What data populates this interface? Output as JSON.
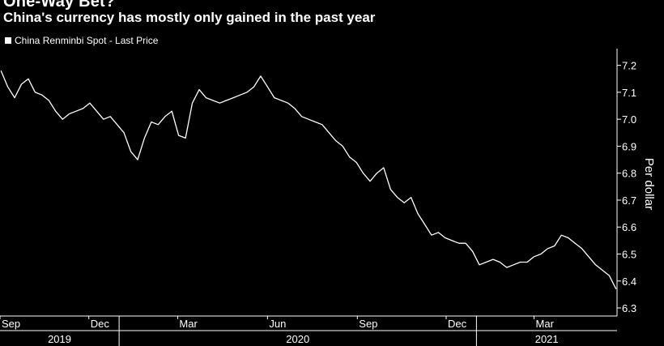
{
  "header": {
    "title": "One-Way Bet?",
    "subtitle": "China's currency has mostly only gained in the past year",
    "legend_label": "China Renminbi Spot - Last Price"
  },
  "colors": {
    "background": "#000000",
    "series": "#ffffff",
    "axis": "#ffffff"
  },
  "chart_data": {
    "type": "line",
    "title": "One-Way Bet?",
    "subtitle": "China's currency has mostly only gained in the past year",
    "ylabel": "Per dollar",
    "ylim": [
      6.27,
      7.25
    ],
    "y_ticks": [
      7.2,
      7.1,
      7.0,
      6.9,
      6.8,
      6.7,
      6.6,
      6.5,
      6.4,
      6.3
    ],
    "x_range": [
      "2019-09-01",
      "2021-05-25"
    ],
    "month_ticks": [
      {
        "date": "2019-09-01",
        "label": "Sep"
      },
      {
        "date": "2019-12-01",
        "label": "Dec"
      },
      {
        "date": "2020-03-01",
        "label": "Mar"
      },
      {
        "date": "2020-06-01",
        "label": "Jun"
      },
      {
        "date": "2020-09-01",
        "label": "Sep"
      },
      {
        "date": "2020-12-01",
        "label": "Dec"
      },
      {
        "date": "2021-03-01",
        "label": "Mar"
      }
    ],
    "years": [
      {
        "label": "2019",
        "start": "2019-09-01",
        "end": "2020-01-01"
      },
      {
        "label": "2020",
        "start": "2020-01-01",
        "end": "2021-01-01"
      },
      {
        "label": "2021",
        "start": "2021-01-01",
        "end": "2021-05-25"
      }
    ],
    "grid": false,
    "legend": "top-left",
    "series": [
      {
        "name": "China Renminbi Spot - Last Price",
        "points": [
          [
            "2019-09-02",
            7.18
          ],
          [
            "2019-09-09",
            7.12
          ],
          [
            "2019-09-16",
            7.08
          ],
          [
            "2019-09-23",
            7.13
          ],
          [
            "2019-09-30",
            7.15
          ],
          [
            "2019-10-07",
            7.1
          ],
          [
            "2019-10-14",
            7.09
          ],
          [
            "2019-10-21",
            7.07
          ],
          [
            "2019-10-28",
            7.03
          ],
          [
            "2019-11-04",
            7.0
          ],
          [
            "2019-11-11",
            7.02
          ],
          [
            "2019-11-18",
            7.03
          ],
          [
            "2019-11-25",
            7.04
          ],
          [
            "2019-12-02",
            7.06
          ],
          [
            "2019-12-09",
            7.03
          ],
          [
            "2019-12-16",
            7.0
          ],
          [
            "2019-12-23",
            7.01
          ],
          [
            "2019-12-30",
            6.98
          ],
          [
            "2020-01-06",
            6.95
          ],
          [
            "2020-01-13",
            6.88
          ],
          [
            "2020-01-20",
            6.85
          ],
          [
            "2020-01-27",
            6.93
          ],
          [
            "2020-02-03",
            6.99
          ],
          [
            "2020-02-10",
            6.98
          ],
          [
            "2020-02-17",
            7.01
          ],
          [
            "2020-02-24",
            7.03
          ],
          [
            "2020-03-02",
            6.94
          ],
          [
            "2020-03-09",
            6.93
          ],
          [
            "2020-03-16",
            7.06
          ],
          [
            "2020-03-23",
            7.11
          ],
          [
            "2020-03-30",
            7.08
          ],
          [
            "2020-04-06",
            7.07
          ],
          [
            "2020-04-13",
            7.06
          ],
          [
            "2020-04-20",
            7.07
          ],
          [
            "2020-04-27",
            7.08
          ],
          [
            "2020-05-04",
            7.09
          ],
          [
            "2020-05-11",
            7.1
          ],
          [
            "2020-05-18",
            7.12
          ],
          [
            "2020-05-25",
            7.16
          ],
          [
            "2020-06-01",
            7.12
          ],
          [
            "2020-06-08",
            7.08
          ],
          [
            "2020-06-15",
            7.07
          ],
          [
            "2020-06-22",
            7.06
          ],
          [
            "2020-06-29",
            7.04
          ],
          [
            "2020-07-06",
            7.01
          ],
          [
            "2020-07-13",
            7.0
          ],
          [
            "2020-07-20",
            6.99
          ],
          [
            "2020-07-27",
            6.98
          ],
          [
            "2020-08-03",
            6.95
          ],
          [
            "2020-08-10",
            6.92
          ],
          [
            "2020-08-17",
            6.9
          ],
          [
            "2020-08-24",
            6.86
          ],
          [
            "2020-08-31",
            6.84
          ],
          [
            "2020-09-07",
            6.8
          ],
          [
            "2020-09-14",
            6.77
          ],
          [
            "2020-09-21",
            6.8
          ],
          [
            "2020-09-28",
            6.82
          ],
          [
            "2020-10-05",
            6.74
          ],
          [
            "2020-10-12",
            6.71
          ],
          [
            "2020-10-19",
            6.69
          ],
          [
            "2020-10-26",
            6.71
          ],
          [
            "2020-11-02",
            6.65
          ],
          [
            "2020-11-09",
            6.61
          ],
          [
            "2020-11-16",
            6.57
          ],
          [
            "2020-11-23",
            6.58
          ],
          [
            "2020-11-30",
            6.56
          ],
          [
            "2020-12-07",
            6.55
          ],
          [
            "2020-12-14",
            6.54
          ],
          [
            "2020-12-21",
            6.54
          ],
          [
            "2020-12-28",
            6.51
          ],
          [
            "2021-01-04",
            6.46
          ],
          [
            "2021-01-11",
            6.47
          ],
          [
            "2021-01-18",
            6.48
          ],
          [
            "2021-01-25",
            6.47
          ],
          [
            "2021-02-01",
            6.45
          ],
          [
            "2021-02-08",
            6.46
          ],
          [
            "2021-02-15",
            6.47
          ],
          [
            "2021-02-22",
            6.47
          ],
          [
            "2021-03-01",
            6.49
          ],
          [
            "2021-03-08",
            6.5
          ],
          [
            "2021-03-15",
            6.52
          ],
          [
            "2021-03-22",
            6.53
          ],
          [
            "2021-03-29",
            6.57
          ],
          [
            "2021-04-05",
            6.56
          ],
          [
            "2021-04-12",
            6.54
          ],
          [
            "2021-04-19",
            6.52
          ],
          [
            "2021-04-26",
            6.49
          ],
          [
            "2021-05-03",
            6.46
          ],
          [
            "2021-05-10",
            6.44
          ],
          [
            "2021-05-17",
            6.42
          ],
          [
            "2021-05-24",
            6.37
          ]
        ]
      }
    ]
  }
}
